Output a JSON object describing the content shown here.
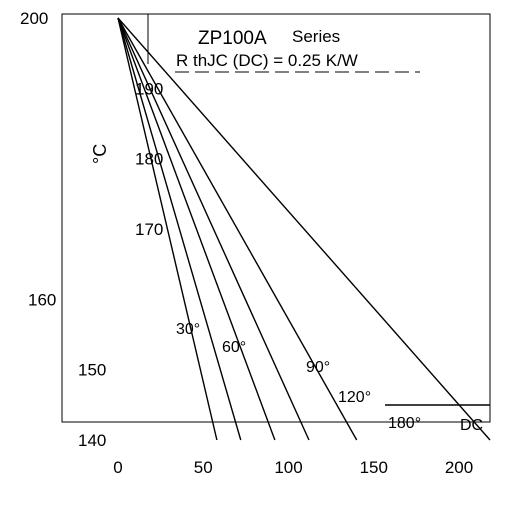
{
  "chart_data": {
    "type": "line",
    "title": "ZP100A",
    "title_suffix": "Series",
    "subtitle": "R thJC (DC) = 0.25 K/W",
    "ylabel": "°C",
    "xlabel": "",
    "xlim": [
      0,
      220
    ],
    "ylim": [
      140,
      200
    ],
    "x_ticks": [
      0,
      50,
      100,
      150,
      200
    ],
    "y_ticks": [
      140,
      150,
      160,
      170,
      180,
      190,
      200
    ],
    "grid": false,
    "series": [
      {
        "name": "30°",
        "x": [
          0,
          58
        ],
        "y": [
          200,
          140
        ]
      },
      {
        "name": "60°",
        "x": [
          0,
          72
        ],
        "y": [
          200,
          140
        ]
      },
      {
        "name": "90°",
        "x": [
          0,
          92
        ],
        "y": [
          200,
          140
        ]
      },
      {
        "name": "120°",
        "x": [
          0,
          112
        ],
        "y": [
          200,
          140
        ]
      },
      {
        "name": "180°",
        "x": [
          0,
          140
        ],
        "y": [
          200,
          140
        ]
      },
      {
        "name": "DC",
        "x": [
          0,
          220
        ],
        "y": [
          200,
          140
        ]
      }
    ],
    "curve_labels": [
      "30°",
      "60°",
      "90°",
      "120°",
      "180°",
      "DC"
    ]
  }
}
